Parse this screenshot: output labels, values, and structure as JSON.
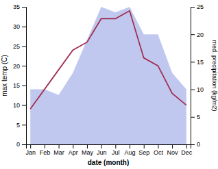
{
  "chart_data": {
    "type": "line",
    "xlabel": "date (month)",
    "ylabel": "max temp (C)",
    "y2label": "med. precipitation (kg/m2)",
    "categories": [
      "Jan",
      "Feb",
      "Mar",
      "Apr",
      "May",
      "Jun",
      "Jul",
      "Aug",
      "Sep",
      "Oct",
      "Nov",
      "Dec"
    ],
    "series": [
      {
        "type": "area",
        "axis": "y2",
        "color": "#c0c8f0",
        "values": [
          10,
          10,
          9,
          13,
          19,
          25,
          24,
          25,
          20,
          20,
          13,
          10
        ]
      },
      {
        "type": "line",
        "color": "#a03050",
        "values": [
          9,
          14,
          19,
          24,
          26,
          32,
          32,
          34,
          22,
          20,
          13,
          10
        ]
      }
    ],
    "ylim": [
      0,
      35
    ],
    "yticks": [
      0,
      5,
      10,
      15,
      20,
      25,
      30,
      35
    ],
    "y2lim": [
      0,
      25
    ],
    "y2ticks": [
      0,
      5,
      10,
      15,
      20,
      25
    ],
    "grid": false
  }
}
